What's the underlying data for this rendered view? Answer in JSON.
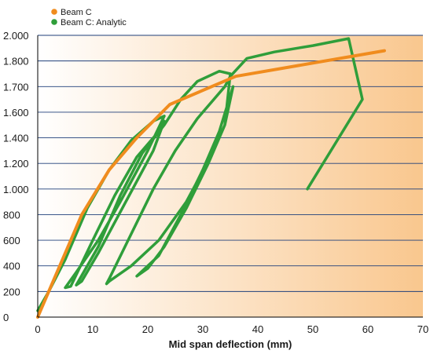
{
  "chart_data": {
    "type": "line",
    "xlabel": "Mid span deflection  (mm)",
    "ylabel": "",
    "xlim": [
      0,
      70
    ],
    "x_ticks": [
      0,
      10,
      20,
      30,
      40,
      50,
      60,
      70
    ],
    "y_ticks": [
      {
        "label": "0",
        "y": 0
      },
      {
        "label": "200",
        "y": 200
      },
      {
        "label": "400",
        "y": 400
      },
      {
        "label": "600",
        "y": 600
      },
      {
        "label": "800",
        "y": 800
      },
      {
        "label": "1.000",
        "y": 1000
      },
      {
        "label": "1.200",
        "y": 1200
      },
      {
        "label": "1.400",
        "y": 1400
      },
      {
        "label": "1.600",
        "y": 1600
      },
      {
        "label": "1.700",
        "y": 1700
      },
      {
        "label": "1.800",
        "y": 1800
      },
      {
        "label": "2.000",
        "y": 2000
      }
    ],
    "grid": true,
    "legend_position": "top-left",
    "background_gradient": {
      "from": "#ffffff",
      "to": "#f9c78e"
    },
    "series": [
      {
        "name": "Beam C",
        "color": "#f08c1e",
        "points": [
          [
            0,
            0
          ],
          [
            8,
            800
          ],
          [
            13,
            1150
          ],
          [
            18,
            1400
          ],
          [
            24,
            1630
          ],
          [
            36,
            1740
          ],
          [
            63,
            1880
          ]
        ]
      },
      {
        "name": "Beam C: Analytic",
        "color": "#2f9e3a",
        "points": [
          [
            0,
            50
          ],
          [
            2,
            200
          ],
          [
            5,
            450
          ],
          [
            9,
            850
          ],
          [
            13,
            1150
          ],
          [
            17,
            1380
          ],
          [
            21,
            1530
          ],
          [
            23,
            1570
          ],
          [
            20,
            1300
          ],
          [
            15,
            900
          ],
          [
            11,
            600
          ],
          [
            7,
            350
          ],
          [
            5,
            230
          ],
          [
            6,
            240
          ],
          [
            10,
            600
          ],
          [
            14,
            950
          ],
          [
            18,
            1250
          ],
          [
            22,
            1450
          ],
          [
            23,
            1530
          ],
          [
            21,
            1300
          ],
          [
            16,
            900
          ],
          [
            11,
            500
          ],
          [
            8,
            280
          ],
          [
            7,
            250
          ],
          [
            11,
            550
          ],
          [
            15,
            950
          ],
          [
            19,
            1280
          ],
          [
            23,
            1500
          ],
          [
            26,
            1650
          ],
          [
            29,
            1720
          ],
          [
            33,
            1760
          ],
          [
            35,
            1750
          ],
          [
            34,
            1500
          ],
          [
            31,
            1200
          ],
          [
            27,
            850
          ],
          [
            23,
            550
          ],
          [
            20,
            380
          ],
          [
            18,
            320
          ],
          [
            22,
            480
          ],
          [
            26,
            800
          ],
          [
            30,
            1150
          ],
          [
            33,
            1450
          ],
          [
            35.5,
            1700
          ],
          [
            34,
            1500
          ],
          [
            31,
            1220
          ],
          [
            27,
            900
          ],
          [
            22,
            600
          ],
          [
            17,
            400
          ],
          [
            13,
            280
          ],
          [
            12.5,
            260
          ],
          [
            13,
            300
          ],
          [
            17,
            650
          ],
          [
            21,
            1000
          ],
          [
            25,
            1300
          ],
          [
            29,
            1550
          ],
          [
            34,
            1700
          ],
          [
            35,
            1740
          ],
          [
            38,
            1820
          ],
          [
            43,
            1870
          ],
          [
            50,
            1920
          ],
          [
            56.5,
            1975
          ],
          [
            59,
            1650
          ],
          [
            49,
            1000
          ]
        ]
      }
    ]
  }
}
